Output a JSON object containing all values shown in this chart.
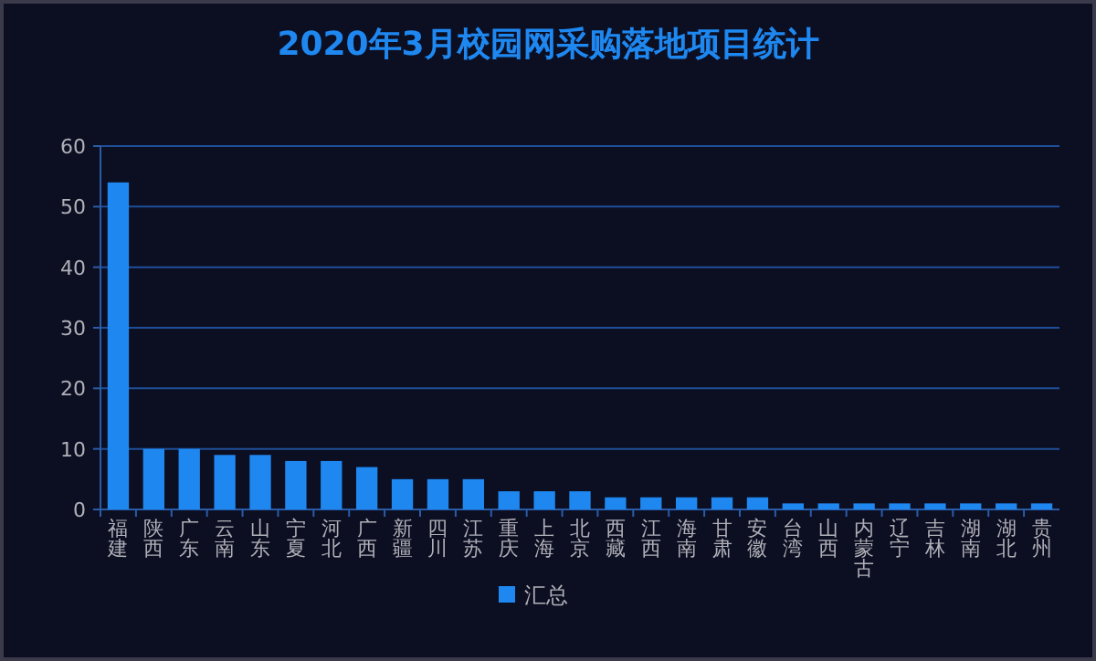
{
  "chart_data": {
    "type": "bar",
    "title": "2020年3月校园网采购落地项目统计",
    "categories": [
      "福建",
      "陕西",
      "广东",
      "云南",
      "山东",
      "宁夏",
      "河北",
      "广西",
      "新疆",
      "四川",
      "江苏",
      "重庆",
      "上海",
      "北京",
      "西藏",
      "江西",
      "海南",
      "甘肃",
      "安徽",
      "台湾",
      "山西",
      "内蒙古",
      "辽宁",
      "吉林",
      "湖南",
      "湖北",
      "贵州"
    ],
    "series": [
      {
        "name": "汇总",
        "color": "#1e88f0",
        "values": [
          54,
          10,
          10,
          9,
          9,
          8,
          8,
          7,
          5,
          5,
          5,
          3,
          3,
          3,
          2,
          2,
          2,
          2,
          2,
          1,
          1,
          1,
          1,
          1,
          1,
          1,
          1
        ]
      }
    ],
    "ylim": [
      0,
      60
    ],
    "yticks": [
      0,
      10,
      20,
      30,
      40,
      50,
      60
    ],
    "grid": "y",
    "legend": "bottom"
  }
}
